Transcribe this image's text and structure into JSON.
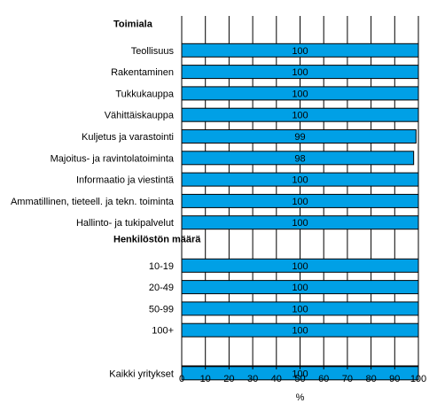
{
  "chart_data": {
    "type": "bar",
    "orientation": "horizontal",
    "title": "",
    "xlabel": "%",
    "ylabel": "",
    "xlim": [
      0,
      100
    ],
    "xticks": [
      "0",
      "10",
      "20",
      "30",
      "40",
      "50",
      "60",
      "70",
      "80",
      "90",
      "100"
    ],
    "grid": "vertical",
    "bar_color": "#00a0e6",
    "rows": [
      {
        "label": "Toimiala",
        "header": true
      },
      {
        "label": "Teollisuus",
        "value": 100
      },
      {
        "label": "Rakentaminen",
        "value": 100
      },
      {
        "label": "Tukkukauppa",
        "value": 100
      },
      {
        "label": "Vähittäiskauppa",
        "value": 100
      },
      {
        "label": "Kuljetus ja varastointi",
        "value": 99
      },
      {
        "label": "Majoitus- ja ravintolatoiminta",
        "value": 98
      },
      {
        "label": "Informaatio ja viestintä",
        "value": 100
      },
      {
        "label": "Ammatillinen, tieteell. ja tekn. toiminta",
        "value": 100
      },
      {
        "label": "Hallinto- ja tukipalvelut",
        "value": 100
      },
      {
        "label": "Henkilöstön määrä",
        "header": true
      },
      {
        "label": "10-19",
        "value": 100
      },
      {
        "label": "20-49",
        "value": 100
      },
      {
        "label": "50-99",
        "value": 100
      },
      {
        "label": "100+",
        "value": 100
      },
      {
        "label": "",
        "blank": true
      },
      {
        "label": "Kaikki yritykset",
        "value": 100
      }
    ]
  }
}
